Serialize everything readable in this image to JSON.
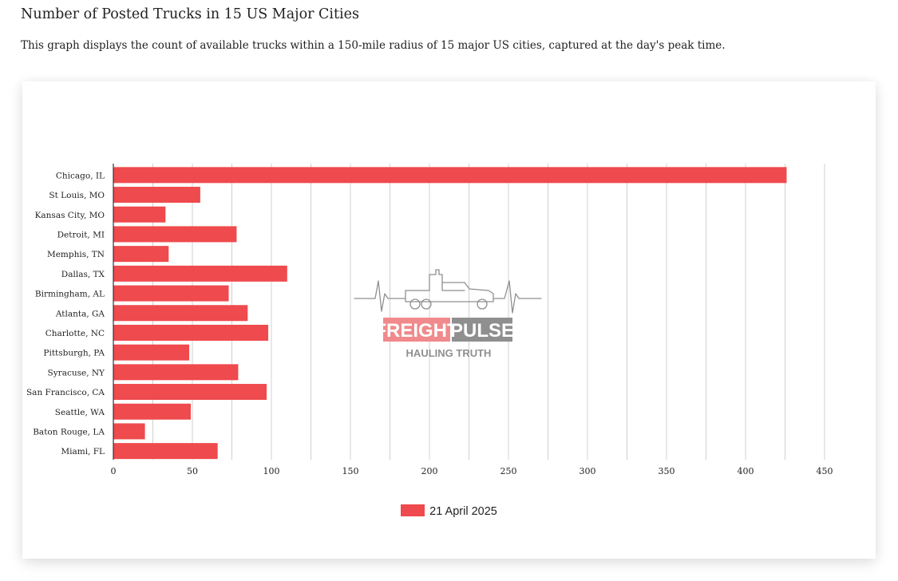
{
  "page": {
    "title": "Number of Posted Trucks in 15 US Major Cities",
    "description": "This graph displays the count of available trucks within a 150-mile radius of 15 major US cities, captured at the day's peak time."
  },
  "watermark": {
    "brand_part1": "FREIGHT",
    "brand_part2": "PULSE",
    "tagline": "HAULING TRUTH"
  },
  "colors": {
    "bar": "#ef4a4d",
    "grid": "#d0d0d0",
    "axis": "#333333",
    "brand_red": "#f08a8c",
    "brand_gray": "#8f8f8f"
  },
  "chart_data": {
    "type": "bar",
    "orientation": "horizontal",
    "title": "",
    "xlabel": "",
    "ylabel": "",
    "categories": [
      "Chicago, IL",
      "St Louis, MO",
      "Kansas City, MO",
      "Detroit, MI",
      "Memphis, TN",
      "Dallas, TX",
      "Birmingham, AL",
      "Atlanta, GA",
      "Charlotte, NC",
      "Pittsburgh, PA",
      "Syracuse, NY",
      "San Francisco, CA",
      "Seattle, WA",
      "Baton Rouge, LA",
      "Miami, FL"
    ],
    "series": [
      {
        "name": "21 April 2025",
        "values": [
          426,
          55,
          33,
          78,
          35,
          110,
          73,
          85,
          98,
          48,
          79,
          97,
          49,
          20,
          66
        ]
      }
    ],
    "xlim": [
      0,
      450
    ],
    "xticks": [
      0,
      50,
      100,
      150,
      200,
      250,
      300,
      350,
      400,
      450
    ],
    "grid": true,
    "legend": "bottom-center"
  }
}
